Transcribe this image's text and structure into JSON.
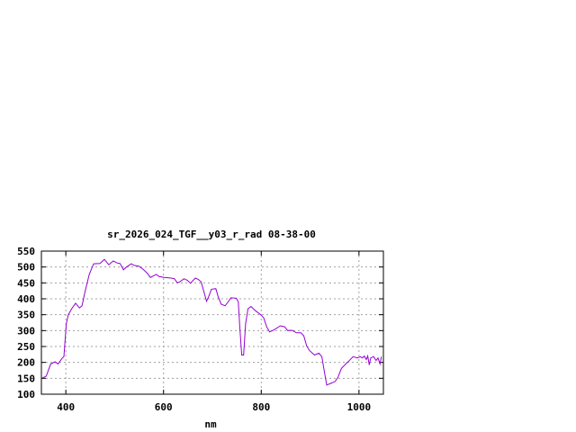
{
  "chart_data": {
    "type": "line",
    "title": "sr_2026_024_TGF__y03_r_rad 08-38-00",
    "xlabel": "nm",
    "ylabel": "",
    "xlim": [
      350,
      1050
    ],
    "ylim": [
      100,
      550
    ],
    "xticks": [
      400,
      600,
      800,
      1000
    ],
    "yticks": [
      100,
      150,
      200,
      250,
      300,
      350,
      400,
      450,
      500,
      550
    ],
    "grid": true,
    "line_color": "#9400d3",
    "series": [
      {
        "x": [
          352,
          360,
          369,
          378,
          384,
          393,
          396,
          401,
          405,
          412,
          420,
          428,
          433,
          439,
          448,
          457,
          470,
          479,
          488,
          497,
          506,
          511,
          518,
          524,
          534,
          540,
          549,
          558,
          567,
          573,
          579,
          585,
          591,
          601,
          616,
          622,
          628,
          633,
          642,
          649,
          655,
          665,
          671,
          677,
          683,
          688,
          692,
          698,
          707,
          712,
          718,
          726,
          732,
          738,
          749,
          753,
          756,
          760,
          764,
          768,
          773,
          779,
          787,
          799,
          805,
          811,
          817,
          826,
          839,
          848,
          854,
          863,
          872,
          881,
          887,
          893,
          899,
          909,
          918,
          924,
          928,
          934,
          942,
          951,
          957,
          964,
          973,
          979,
          988,
          997,
          1003,
          1007,
          1011,
          1015,
          1018,
          1021,
          1024,
          1030,
          1035,
          1039,
          1043,
          1046
        ],
        "y": [
          151,
          157,
          195,
          202,
          195,
          214,
          218,
          322,
          350,
          369,
          386,
          371,
          378,
          420,
          477,
          510,
          511,
          524,
          507,
          519,
          512,
          511,
          491,
          500,
          510,
          505,
          503,
          493,
          480,
          467,
          472,
          477,
          470,
          467,
          465,
          463,
          451,
          453,
          463,
          458,
          449,
          465,
          461,
          453,
          420,
          392,
          406,
          430,
          432,
          406,
          383,
          378,
          390,
          403,
          402,
          390,
          312,
          223,
          223,
          322,
          369,
          376,
          364,
          350,
          340,
          312,
          296,
          302,
          315,
          312,
          300,
          301,
          293,
          293,
          284,
          251,
          237,
          223,
          229,
          218,
          181,
          129,
          134,
          140,
          153,
          181,
          195,
          204,
          218,
          214,
          218,
          214,
          220,
          209,
          220,
          192,
          214,
          218,
          206,
          214,
          195,
          218
        ]
      }
    ]
  }
}
